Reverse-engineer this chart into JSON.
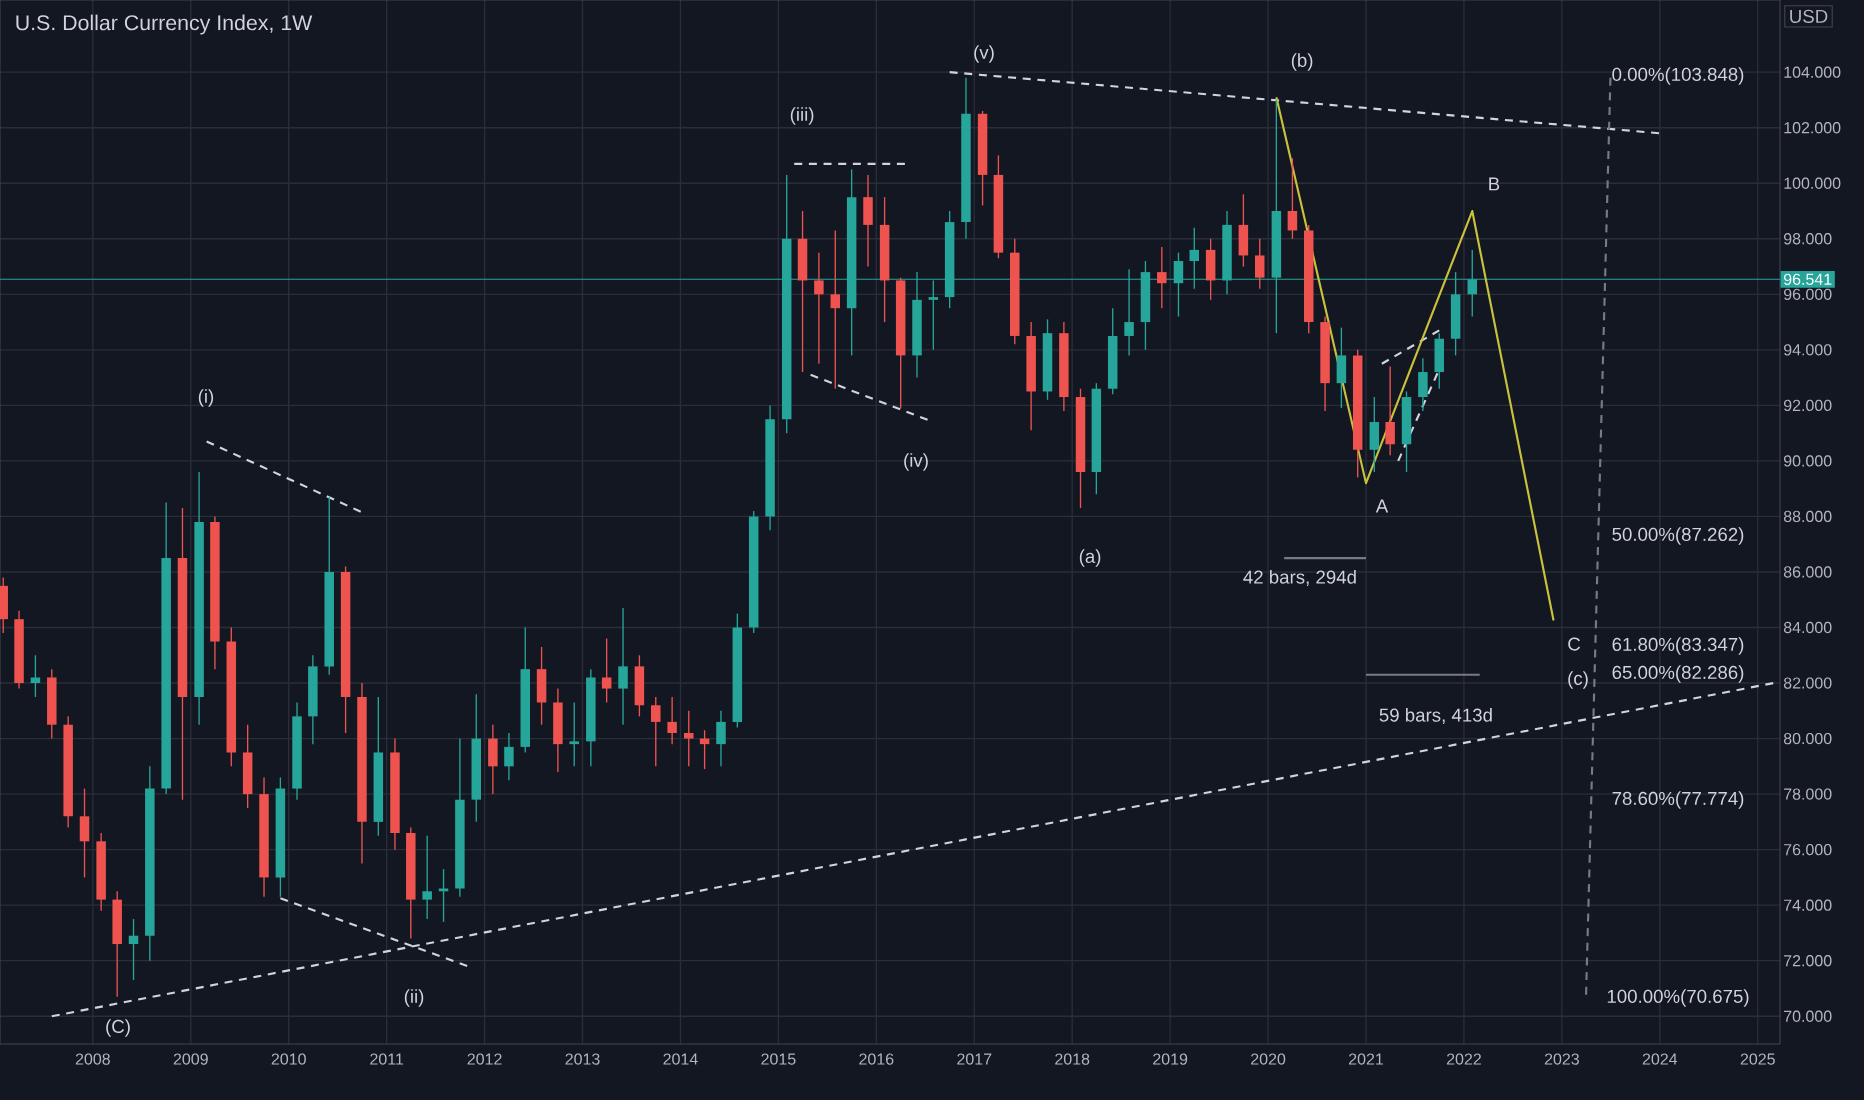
{
  "chart_data": {
    "type": "candlestick",
    "title": "U.S. Dollar Currency Index, 1W",
    "ylabel": "USD",
    "xlim": [
      "2007-01-20",
      "2025-03-25"
    ],
    "ylim": [
      69,
      106.6
    ],
    "xticks": [
      "2008",
      "2009",
      "2010",
      "2011",
      "2012",
      "2013",
      "2014",
      "2015",
      "2016",
      "2017",
      "2018",
      "2019",
      "2020",
      "2021",
      "2022",
      "2023",
      "2024",
      "2025"
    ],
    "yticks": [
      {
        "value": 70,
        "label": "70.000"
      },
      {
        "value": 72,
        "label": "72.000"
      },
      {
        "value": 74,
        "label": "74.000"
      },
      {
        "value": 76,
        "label": "76.000"
      },
      {
        "value": 78,
        "label": "78.000"
      },
      {
        "value": 80,
        "label": "80.000"
      },
      {
        "value": 82,
        "label": "82.000"
      },
      {
        "value": 84,
        "label": "84.000"
      },
      {
        "value": 86,
        "label": "86.000"
      },
      {
        "value": 88,
        "label": "88.000"
      },
      {
        "value": 90,
        "label": "90.000"
      },
      {
        "value": 92,
        "label": "92.000"
      },
      {
        "value": 94,
        "label": "94.000"
      },
      {
        "value": 96,
        "label": "96.000"
      },
      {
        "value": 98,
        "label": "98.000"
      },
      {
        "value": 100,
        "label": "100.000"
      },
      {
        "value": 102,
        "label": "102.000"
      },
      {
        "value": 104,
        "label": "104.000"
      }
    ],
    "grid": true,
    "x": [
      "2007-02",
      "2007-04",
      "2007-06",
      "2007-08",
      "2007-10",
      "2007-12",
      "2008-02",
      "2008-04",
      "2008-06",
      "2008-08",
      "2008-10",
      "2008-12",
      "2009-02",
      "2009-04",
      "2009-06",
      "2009-08",
      "2009-10",
      "2009-12",
      "2010-02",
      "2010-04",
      "2010-06",
      "2010-08",
      "2010-10",
      "2010-12",
      "2011-02",
      "2011-04",
      "2011-06",
      "2011-08",
      "2011-10",
      "2011-12",
      "2012-02",
      "2012-04",
      "2012-06",
      "2012-08",
      "2012-10",
      "2012-12",
      "2013-02",
      "2013-04",
      "2013-06",
      "2013-08",
      "2013-10",
      "2013-12",
      "2014-02",
      "2014-04",
      "2014-06",
      "2014-08",
      "2014-10",
      "2014-12",
      "2015-02",
      "2015-04",
      "2015-06",
      "2015-08",
      "2015-10",
      "2015-12",
      "2016-02",
      "2016-04",
      "2016-06",
      "2016-08",
      "2016-10",
      "2016-12",
      "2017-02",
      "2017-04",
      "2017-06",
      "2017-08",
      "2017-10",
      "2017-12",
      "2018-02",
      "2018-04",
      "2018-06",
      "2018-08",
      "2018-10",
      "2018-12",
      "2019-02",
      "2019-04",
      "2019-06",
      "2019-08",
      "2019-10",
      "2019-12",
      "2020-02",
      "2020-04",
      "2020-06",
      "2020-08",
      "2020-10",
      "2020-12",
      "2021-02",
      "2021-04",
      "2021-06",
      "2021-08",
      "2021-10",
      "2021-12",
      "2022-02"
    ],
    "ohlc": [
      [
        85.5,
        85.8,
        83.8,
        84.3
      ],
      [
        84.3,
        84.6,
        81.8,
        82.0
      ],
      [
        82.0,
        83.0,
        81.5,
        82.2
      ],
      [
        82.2,
        82.5,
        80.0,
        80.5
      ],
      [
        80.5,
        80.8,
        76.8,
        77.2
      ],
      [
        77.2,
        78.2,
        75.0,
        76.3
      ],
      [
        76.3,
        76.6,
        73.8,
        74.2
      ],
      [
        74.2,
        74.5,
        70.7,
        72.6
      ],
      [
        72.6,
        73.5,
        71.3,
        72.9
      ],
      [
        72.9,
        79.0,
        72.0,
        78.2
      ],
      [
        78.2,
        88.5,
        78.0,
        86.5
      ],
      [
        86.5,
        88.3,
        77.8,
        81.5
      ],
      [
        81.5,
        89.6,
        80.5,
        87.8
      ],
      [
        87.8,
        88.0,
        82.5,
        83.5
      ],
      [
        83.5,
        84.0,
        79.0,
        79.5
      ],
      [
        79.5,
        80.5,
        77.5,
        78.0
      ],
      [
        78.0,
        78.6,
        74.3,
        75.0
      ],
      [
        75.0,
        78.6,
        74.3,
        78.2
      ],
      [
        78.2,
        81.3,
        77.8,
        80.8
      ],
      [
        80.8,
        83.0,
        79.8,
        82.6
      ],
      [
        82.6,
        88.7,
        82.3,
        86.0
      ],
      [
        86.0,
        86.2,
        80.2,
        81.5
      ],
      [
        81.5,
        82.0,
        75.5,
        77.0
      ],
      [
        77.0,
        81.5,
        76.5,
        79.5
      ],
      [
        79.5,
        80.0,
        76.0,
        76.6
      ],
      [
        76.6,
        76.8,
        72.8,
        74.2
      ],
      [
        74.2,
        76.5,
        73.5,
        74.5
      ],
      [
        74.5,
        75.3,
        73.4,
        74.6
      ],
      [
        74.6,
        80.0,
        74.3,
        77.8
      ],
      [
        77.8,
        81.6,
        77.0,
        80.0
      ],
      [
        80.0,
        80.5,
        78.0,
        79.0
      ],
      [
        79.0,
        80.2,
        78.5,
        79.7
      ],
      [
        79.7,
        84.0,
        79.5,
        82.5
      ],
      [
        82.5,
        83.3,
        80.5,
        81.3
      ],
      [
        81.3,
        81.8,
        78.8,
        79.8
      ],
      [
        79.8,
        81.3,
        79.0,
        79.9
      ],
      [
        79.9,
        82.5,
        79.0,
        82.2
      ],
      [
        82.2,
        83.6,
        81.3,
        81.8
      ],
      [
        81.8,
        84.7,
        80.5,
        82.6
      ],
      [
        82.6,
        83.0,
        80.8,
        81.2
      ],
      [
        81.2,
        81.5,
        79.0,
        80.6
      ],
      [
        80.6,
        81.5,
        79.8,
        80.2
      ],
      [
        80.2,
        81.0,
        79.0,
        80.0
      ],
      [
        80.0,
        80.3,
        78.9,
        79.8
      ],
      [
        79.8,
        81.0,
        79.0,
        80.6
      ],
      [
        80.6,
        84.5,
        80.4,
        84.0
      ],
      [
        84.0,
        88.2,
        83.8,
        88.0
      ],
      [
        88.0,
        92.0,
        87.5,
        91.5
      ],
      [
        91.5,
        100.3,
        91.0,
        98.0
      ],
      [
        98.0,
        99.0,
        93.2,
        96.5
      ],
      [
        96.5,
        97.5,
        93.5,
        96.0
      ],
      [
        96.0,
        98.3,
        92.6,
        95.5
      ],
      [
        95.5,
        100.5,
        93.8,
        99.5
      ],
      [
        99.5,
        100.3,
        97.0,
        98.5
      ],
      [
        98.5,
        99.5,
        95.0,
        96.5
      ],
      [
        96.5,
        96.6,
        91.9,
        93.8
      ],
      [
        93.8,
        96.8,
        93.0,
        95.8
      ],
      [
        95.8,
        96.5,
        94.0,
        95.9
      ],
      [
        95.9,
        99.0,
        95.5,
        98.6
      ],
      [
        98.6,
        103.8,
        98.0,
        102.5
      ],
      [
        102.5,
        102.6,
        99.2,
        100.3
      ],
      [
        100.3,
        101.0,
        97.3,
        97.5
      ],
      [
        97.5,
        98.0,
        94.2,
        94.5
      ],
      [
        94.5,
        95.0,
        91.1,
        92.5
      ],
      [
        92.5,
        95.1,
        92.2,
        94.6
      ],
      [
        94.6,
        95.0,
        91.8,
        92.3
      ],
      [
        92.3,
        92.6,
        88.3,
        89.6
      ],
      [
        89.6,
        92.8,
        88.8,
        92.6
      ],
      [
        92.6,
        95.5,
        92.4,
        94.5
      ],
      [
        94.5,
        96.9,
        93.8,
        95.0
      ],
      [
        95.0,
        97.2,
        94.0,
        96.8
      ],
      [
        96.8,
        97.7,
        95.5,
        96.4
      ],
      [
        96.4,
        97.5,
        95.2,
        97.2
      ],
      [
        97.2,
        98.4,
        96.2,
        97.6
      ],
      [
        97.6,
        98.0,
        95.8,
        96.5
      ],
      [
        96.5,
        99.0,
        96.0,
        98.5
      ],
      [
        98.5,
        99.6,
        97.0,
        97.4
      ],
      [
        97.4,
        98.0,
        96.2,
        96.6
      ],
      [
        96.6,
        103.0,
        94.6,
        99.0
      ],
      [
        99.0,
        100.9,
        98.0,
        98.3
      ],
      [
        98.3,
        98.5,
        94.6,
        95.0
      ],
      [
        95.0,
        95.2,
        91.8,
        92.8
      ],
      [
        92.8,
        94.8,
        91.9,
        93.8
      ],
      [
        93.8,
        94.0,
        89.4,
        90.4
      ],
      [
        90.4,
        92.3,
        89.6,
        91.4
      ],
      [
        91.4,
        93.4,
        90.2,
        90.6
      ],
      [
        90.6,
        92.5,
        89.6,
        92.3
      ],
      [
        92.3,
        93.7,
        91.8,
        93.2
      ],
      [
        93.2,
        94.6,
        92.6,
        94.4
      ],
      [
        94.4,
        96.8,
        93.8,
        96.0
      ],
      [
        96.0,
        97.6,
        95.2,
        96.541
      ]
    ],
    "series": [
      {
        "type": "line",
        "color": "#d1d4dc",
        "line_style": "dashed",
        "x": [
          "2007-08",
          "2025-03"
        ],
        "values": [
          70.0,
          82.0
        ]
      },
      {
        "type": "line",
        "color": "#d1d4dc",
        "line_style": "dashed",
        "x": [
          "2016-10",
          "2024-01"
        ],
        "values": [
          104.0,
          101.8
        ]
      },
      {
        "type": "line",
        "color": "#d1d4dc",
        "line_style": "dashed",
        "x": [
          "2009-03",
          "2010-10"
        ],
        "values": [
          90.7,
          88.15
        ]
      },
      {
        "type": "line",
        "color": "#d1d4dc",
        "line_style": "dashed",
        "x": [
          "2009-12",
          "2011-11"
        ],
        "values": [
          74.25,
          71.8
        ]
      },
      {
        "type": "line",
        "color": "#d1d4dc",
        "line_style": "dashed",
        "x": [
          "2015-03",
          "2016-05"
        ],
        "values": [
          100.7,
          100.7
        ]
      },
      {
        "type": "line",
        "color": "#d1d4dc",
        "line_style": "dashed",
        "x": [
          "2015-05",
          "2016-08"
        ],
        "values": [
          93.1,
          91.4
        ]
      },
      {
        "type": "line",
        "color": "#d1d4dc",
        "line_style": "dashed",
        "x": [
          "2021-03",
          "2021-10"
        ],
        "values": [
          93.5,
          94.7
        ]
      },
      {
        "type": "line",
        "color": "#d1d4dc",
        "line_style": "dashed",
        "x": [
          "2021-05",
          "2021-10"
        ],
        "values": [
          90.0,
          93.3
        ]
      },
      {
        "type": "line",
        "color": "#787b86",
        "line_style": "dashed",
        "x": [
          "2023-07",
          "2023-04"
        ],
        "values": [
          103.8,
          70.7
        ]
      },
      {
        "type": "line",
        "color": "#c9c23a",
        "line_style": "solid",
        "x": [
          "2020-02",
          "2021-01",
          "2022-02",
          "2022-12"
        ],
        "values": [
          103.1,
          89.2,
          99.0,
          84.25
        ]
      },
      {
        "type": "line",
        "color": "#787b86",
        "line_style": "solid",
        "x": [
          "2020-03",
          "2021-01"
        ],
        "values": [
          86.5,
          86.5
        ]
      },
      {
        "type": "line",
        "color": "#787b86",
        "line_style": "solid",
        "x": [
          "2021-01",
          "2022-03"
        ],
        "values": [
          82.3,
          82.3
        ]
      }
    ],
    "ref_lines": [
      {
        "axis": "y",
        "value": 96.541,
        "label": "96.541",
        "color": "#26a69a"
      }
    ],
    "annotations": [
      "(i)",
      "(ii)",
      "(iii)",
      "(iv)",
      "(v)",
      "(a)",
      "(b)",
      "(C)",
      "A",
      "B",
      "C",
      "(c)",
      "42 bars, 294d",
      "59 bars, 413d",
      "0.00%(103.848)",
      "50.00%(87.262)",
      "61.80%(83.347)",
      "65.00%(82.286)",
      "78.60%(77.774)",
      "100.00%(70.675)"
    ]
  }
}
